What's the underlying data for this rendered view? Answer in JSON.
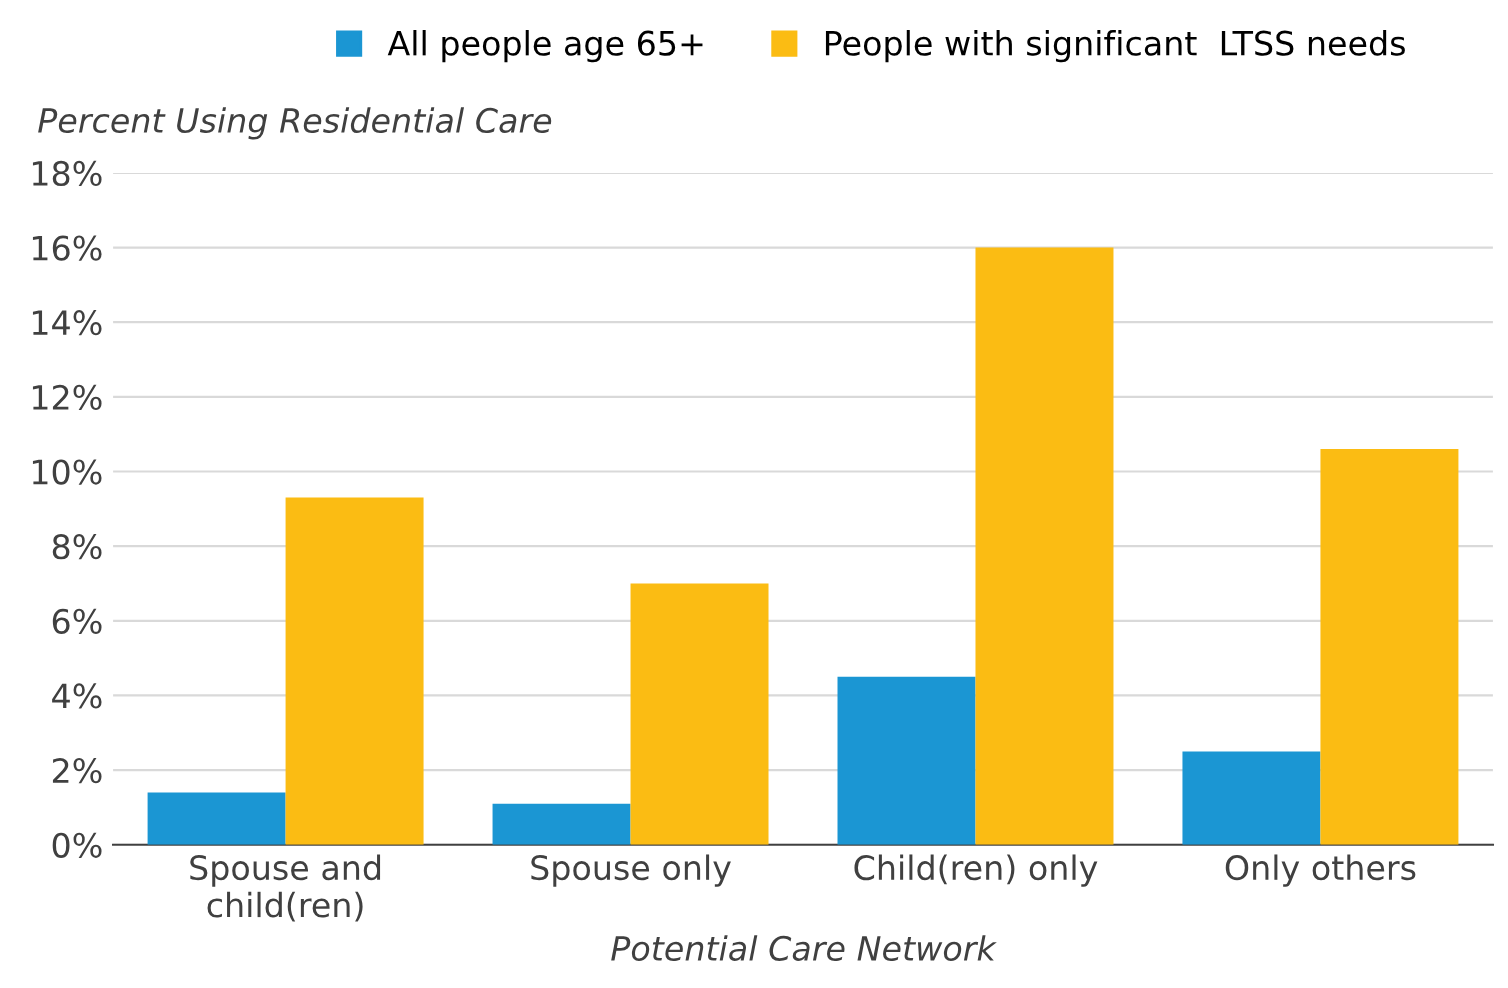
{
  "chart_data": {
    "type": "bar",
    "ylabel": "Percent Using Residential Care",
    "xlabel": "Potential Care Network",
    "categories": [
      "Spouse and\nchild(ren)",
      "Spouse only",
      "Child(ren) only",
      "Only others"
    ],
    "series": [
      {
        "name": "All people age 65+",
        "color": "#1b96d3",
        "values": [
          1.4,
          1.1,
          4.5,
          2.5
        ]
      },
      {
        "name": "People with significant  LTSS needs",
        "color": "#fbbc13",
        "values": [
          9.3,
          7.0,
          16.0,
          10.6
        ]
      }
    ],
    "ylim": [
      0,
      18
    ],
    "yticks": [
      {
        "value": 0,
        "label": "0%"
      },
      {
        "value": 2,
        "label": "2%"
      },
      {
        "value": 4,
        "label": "4%"
      },
      {
        "value": 6,
        "label": "6%"
      },
      {
        "value": 8,
        "label": "8%"
      },
      {
        "value": 10,
        "label": "10%"
      },
      {
        "value": 12,
        "label": "12%"
      },
      {
        "value": 14,
        "label": "14%"
      },
      {
        "value": 16,
        "label": "16%"
      },
      {
        "value": 18,
        "label": "18%"
      }
    ],
    "grid": "y",
    "legend": "top"
  }
}
